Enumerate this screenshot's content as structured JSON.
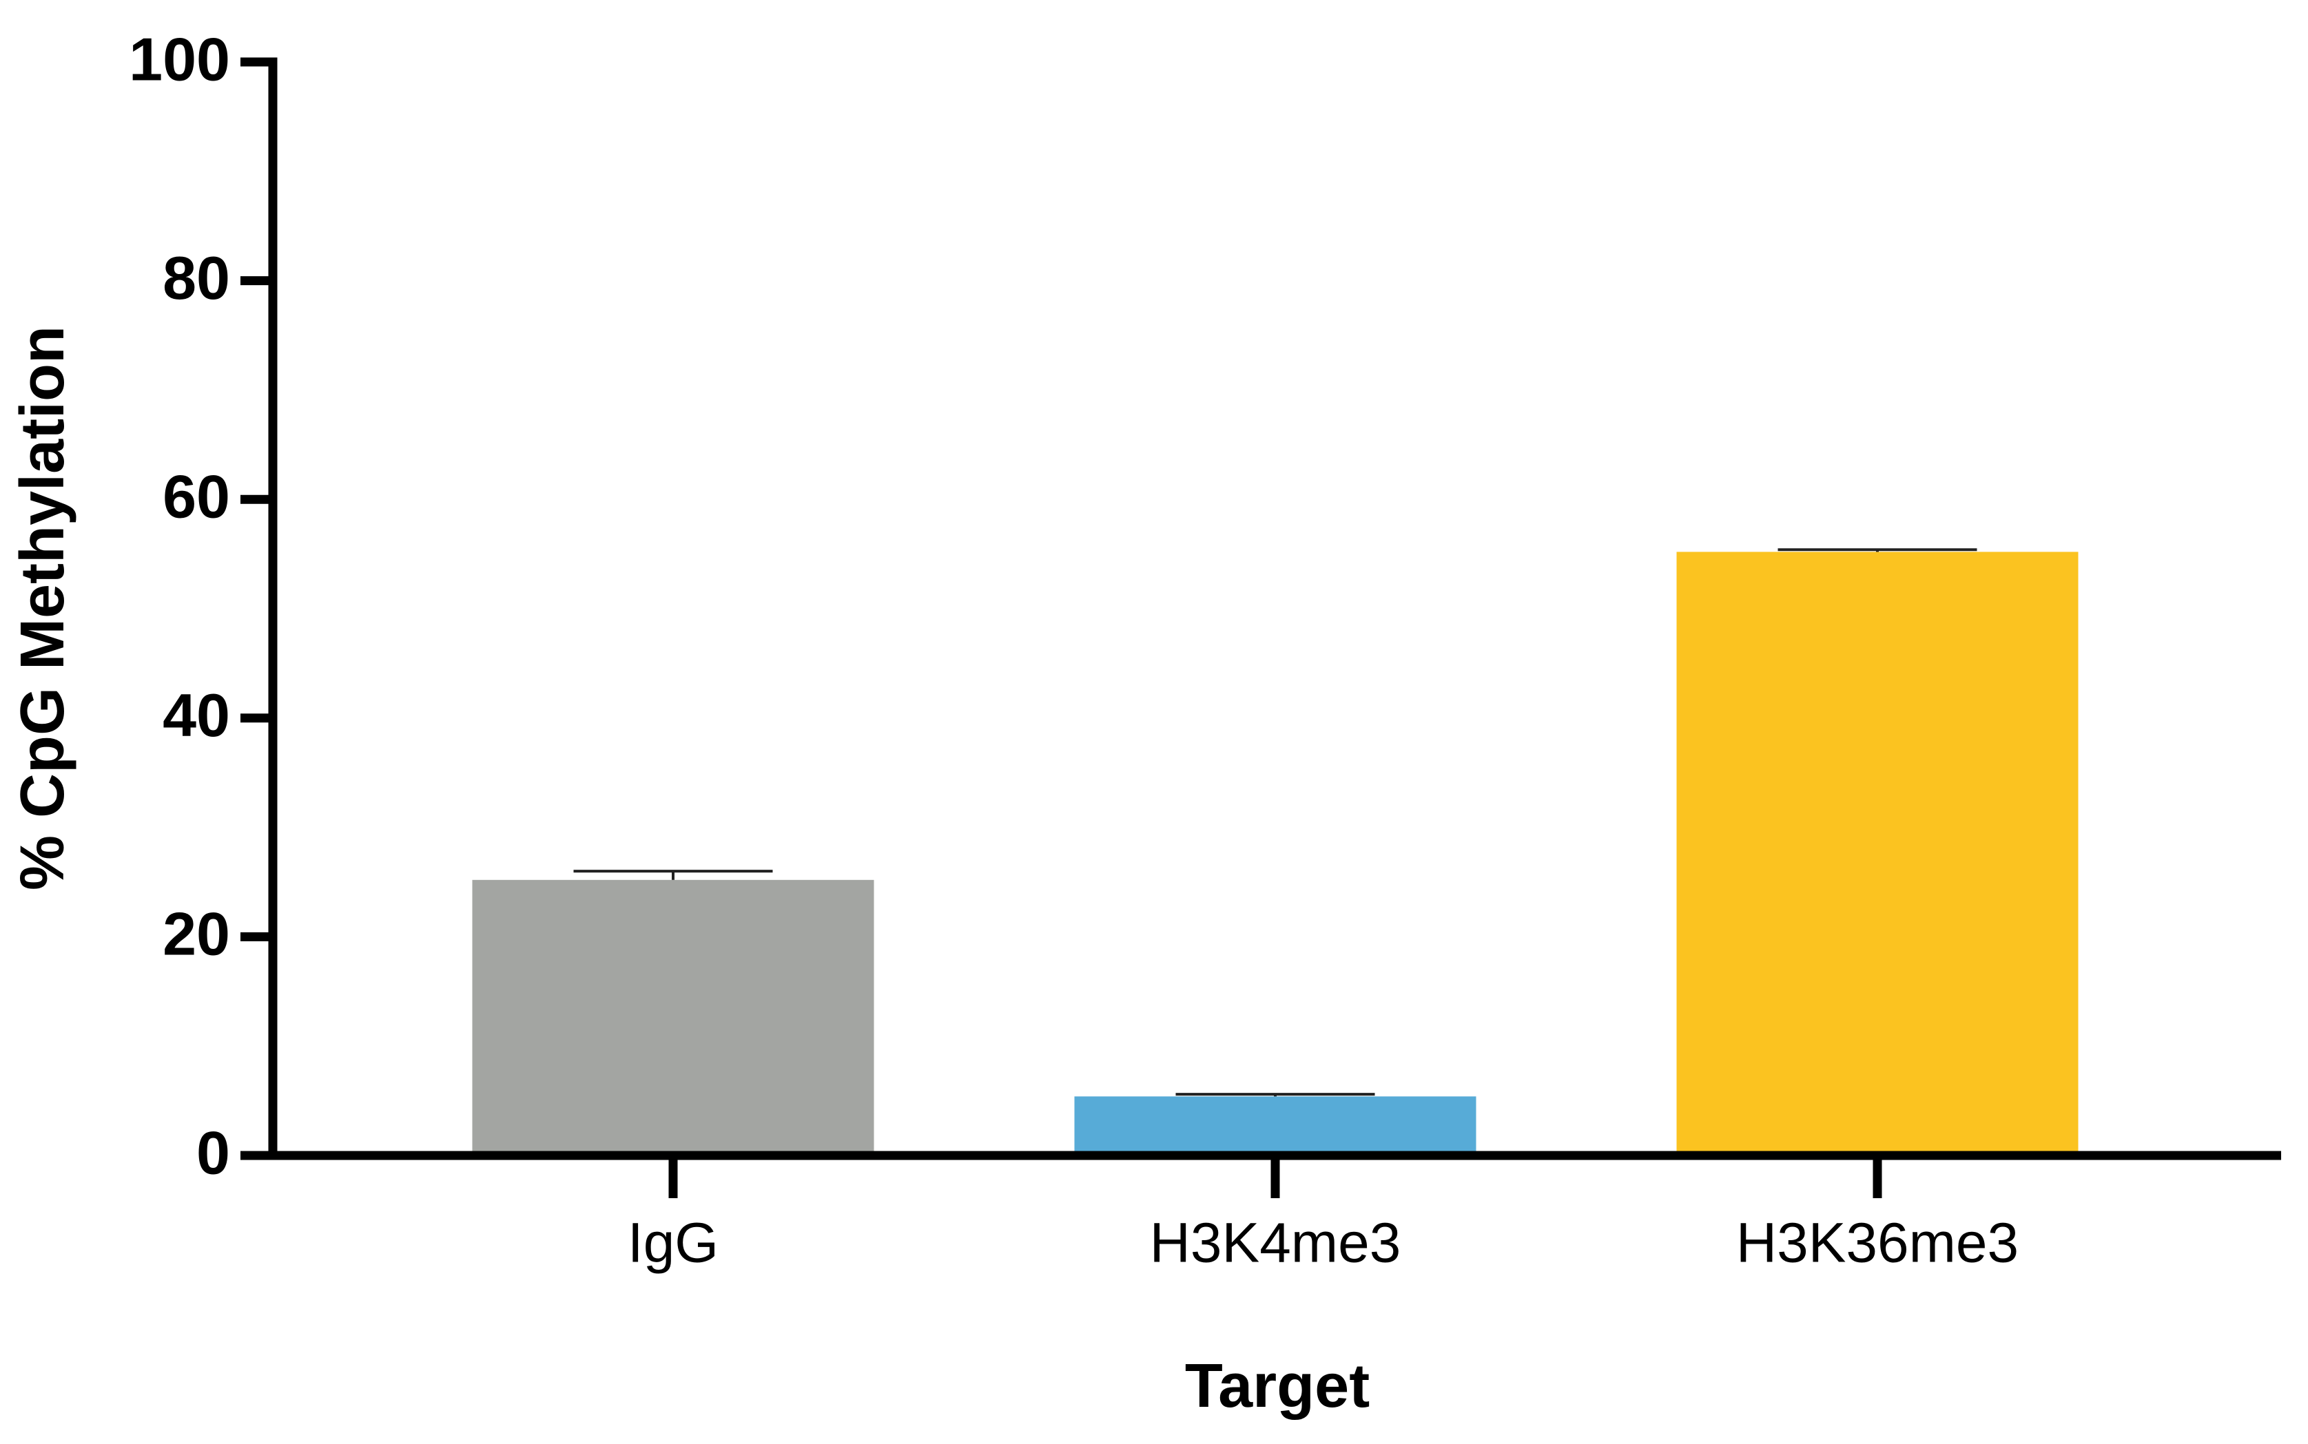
{
  "chart_data": {
    "type": "bar",
    "x_label": "Target",
    "y_label": "% CpG Methylation",
    "categories": [
      "IgG",
      "H3K4me3",
      "H3K36me3"
    ],
    "values": [
      25.2,
      5.4,
      55.2
    ],
    "errors": [
      0.8,
      0.2,
      0.2
    ],
    "colors": [
      "#a3a5a2",
      "#57abd7",
      "#fbc320"
    ],
    "ylim": [
      0,
      100
    ],
    "yticks": [
      0,
      20,
      40,
      60,
      80,
      100
    ],
    "grid": false
  }
}
